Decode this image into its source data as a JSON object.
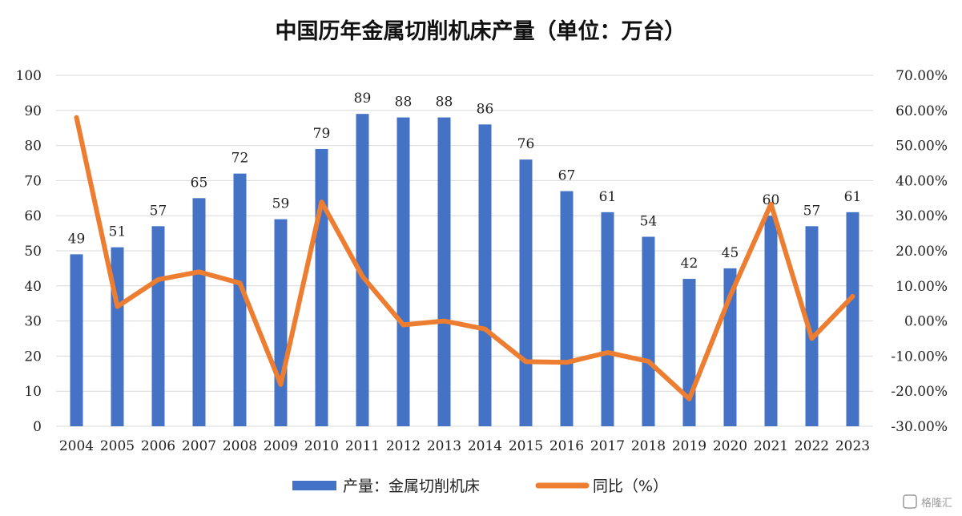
{
  "chart_data": {
    "type": "bar+line",
    "title": "中国历年金属切削机床产量（单位：万台）",
    "categories": [
      "2004",
      "2005",
      "2006",
      "2007",
      "2008",
      "2009",
      "2010",
      "2011",
      "2012",
      "2013",
      "2014",
      "2015",
      "2016",
      "2017",
      "2018",
      "2019",
      "2020",
      "2021",
      "2022",
      "2023"
    ],
    "series": [
      {
        "name": "产量：金属切削机床",
        "type": "bar",
        "axis": "left",
        "color": "#4472C4",
        "values": [
          49,
          51,
          57,
          65,
          72,
          59,
          79,
          89,
          88,
          88,
          86,
          76,
          67,
          61,
          54,
          42,
          45,
          60,
          57,
          61
        ]
      },
      {
        "name": "同比（%）",
        "type": "line",
        "axis": "right",
        "color": "#ED7D31",
        "values": [
          58.0,
          4.1,
          11.8,
          14.0,
          10.8,
          -18.1,
          33.9,
          12.7,
          -1.1,
          0.0,
          -2.3,
          -11.6,
          -11.8,
          -9.0,
          -11.5,
          -22.2,
          7.1,
          33.3,
          -5.0,
          7.0
        ]
      }
    ],
    "y_left": {
      "min": 0,
      "max": 100,
      "step": 10,
      "ticks": [
        "0",
        "10",
        "20",
        "30",
        "40",
        "50",
        "60",
        "70",
        "80",
        "90",
        "100"
      ]
    },
    "y_right": {
      "min": -30,
      "max": 70,
      "step": 10,
      "ticks": [
        "-30.00%",
        "-20.00%",
        "-10.00%",
        "0.00%",
        "10.00%",
        "20.00%",
        "30.00%",
        "40.00%",
        "50.00%",
        "60.00%",
        "70.00%"
      ]
    },
    "grid": true,
    "legend": "bottom"
  },
  "watermark": "格隆汇"
}
